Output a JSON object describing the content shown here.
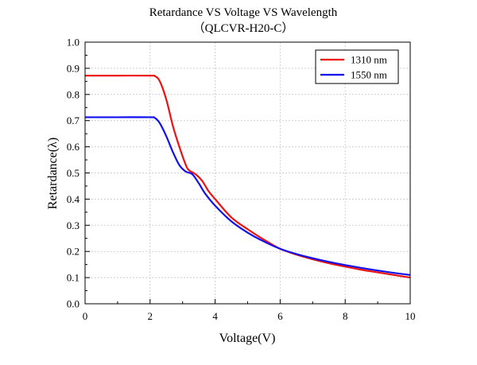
{
  "chart_data": {
    "type": "line",
    "title": "Retardance VS Voltage VS Wavelength",
    "subtitle": "（QLCVR-H20-C）",
    "xlabel": "Voltage(V)",
    "ylabel": "Retardance(λ)",
    "xlim": [
      0,
      10
    ],
    "ylim": [
      0,
      1.0
    ],
    "xticks": [
      "0",
      "2",
      "4",
      "6",
      "8",
      "10"
    ],
    "yticks": [
      "0.0",
      "0.1",
      "0.2",
      "0.3",
      "0.4",
      "0.5",
      "0.6",
      "0.7",
      "0.8",
      "0.9",
      "1.0"
    ],
    "grid": true,
    "legend_position": "top-right",
    "series": [
      {
        "name": "1310 nm",
        "color": "#ee1111",
        "points": [
          [
            0,
            0.872
          ],
          [
            1,
            0.872
          ],
          [
            2,
            0.872
          ],
          [
            2.15,
            0.87
          ],
          [
            2.3,
            0.85
          ],
          [
            2.5,
            0.78
          ],
          [
            2.7,
            0.68
          ],
          [
            2.9,
            0.6
          ],
          [
            3.1,
            0.53
          ],
          [
            3.2,
            0.51
          ],
          [
            3.4,
            0.495
          ],
          [
            3.6,
            0.47
          ],
          [
            3.8,
            0.43
          ],
          [
            4.0,
            0.4
          ],
          [
            4.5,
            0.33
          ],
          [
            5.0,
            0.285
          ],
          [
            5.5,
            0.245
          ],
          [
            6.0,
            0.21
          ],
          [
            6.5,
            0.188
          ],
          [
            7.0,
            0.17
          ],
          [
            7.5,
            0.155
          ],
          [
            8.0,
            0.142
          ],
          [
            8.5,
            0.13
          ],
          [
            9.0,
            0.12
          ],
          [
            9.5,
            0.11
          ],
          [
            10,
            0.1
          ]
        ]
      },
      {
        "name": "1550 nm",
        "color": "#1111ee",
        "points": [
          [
            0,
            0.713
          ],
          [
            1,
            0.713
          ],
          [
            2,
            0.713
          ],
          [
            2.15,
            0.71
          ],
          [
            2.3,
            0.69
          ],
          [
            2.5,
            0.64
          ],
          [
            2.7,
            0.58
          ],
          [
            2.9,
            0.53
          ],
          [
            3.1,
            0.505
          ],
          [
            3.3,
            0.495
          ],
          [
            3.5,
            0.46
          ],
          [
            3.7,
            0.42
          ],
          [
            4.0,
            0.375
          ],
          [
            4.5,
            0.315
          ],
          [
            5.0,
            0.272
          ],
          [
            5.5,
            0.238
          ],
          [
            6.0,
            0.21
          ],
          [
            6.5,
            0.19
          ],
          [
            7.0,
            0.174
          ],
          [
            7.5,
            0.16
          ],
          [
            8.0,
            0.148
          ],
          [
            8.5,
            0.137
          ],
          [
            9.0,
            0.127
          ],
          [
            9.5,
            0.118
          ],
          [
            10,
            0.11
          ]
        ]
      }
    ]
  }
}
